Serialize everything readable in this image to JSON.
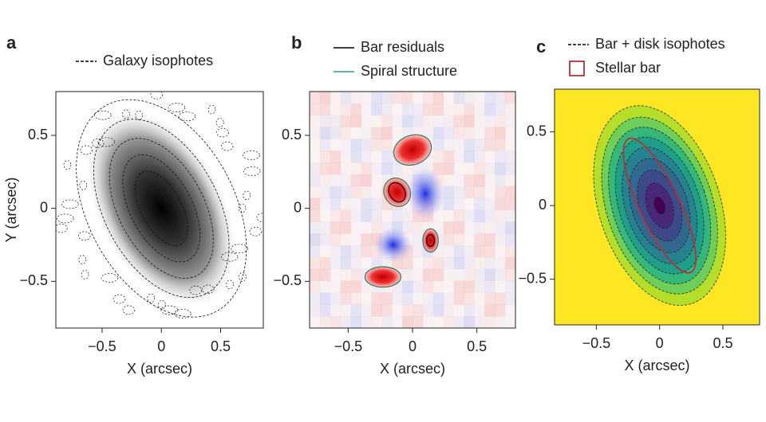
{
  "chart_data": [
    {
      "type": "heatmap",
      "colormap": "gray",
      "panel_label": "a",
      "series": [
        {
          "name": "Galaxy isophotes",
          "color": "#000000",
          "style": "dashed"
        }
      ],
      "x_label": "X (arcsec)",
      "y_label": "Y (arcsec)",
      "xlim": [
        -0.89,
        0.86
      ],
      "ylim": [
        -0.82,
        0.8
      ],
      "xticks": [
        {
          "value": -0.5,
          "label": "−0.5"
        },
        0,
        0.5
      ],
      "yticks": [
        {
          "value": -0.5,
          "label": "−0.5"
        },
        0,
        0.5
      ]
    },
    {
      "type": "heatmap",
      "colormap": "bwr",
      "panel_label": "b",
      "series": [
        {
          "name": "Bar residuals",
          "color": "#000000",
          "style": "solid"
        },
        {
          "name": "Spiral structure",
          "color": "#2a9d8f",
          "style": "solid"
        }
      ],
      "x_label": "X (arcsec)",
      "xlim": [
        -0.8,
        0.8
      ],
      "ylim": [
        -0.82,
        0.8
      ],
      "xticks": [
        {
          "value": -0.5,
          "label": "−0.5"
        },
        0,
        0.5
      ],
      "yticks": [
        {
          "value": -0.5,
          "label": "−0.5"
        },
        0,
        0.5
      ]
    },
    {
      "type": "heatmap",
      "colormap": "viridis",
      "panel_label": "c",
      "series": [
        {
          "name": "Bar + disk isophotes",
          "color": "#000000",
          "style": "dashed"
        },
        {
          "name": "Stellar bar",
          "color": "#b5313a",
          "style": "box"
        }
      ],
      "x_label": "X (arcsec)",
      "xlim": [
        -0.83,
        0.79
      ],
      "ylim": [
        -0.81,
        0.79
      ],
      "xticks": [
        {
          "value": -0.5,
          "label": "−0.5"
        },
        0,
        0.5
      ],
      "yticks": [
        {
          "value": -0.5,
          "label": "−0.5"
        },
        0,
        0.5
      ]
    }
  ]
}
